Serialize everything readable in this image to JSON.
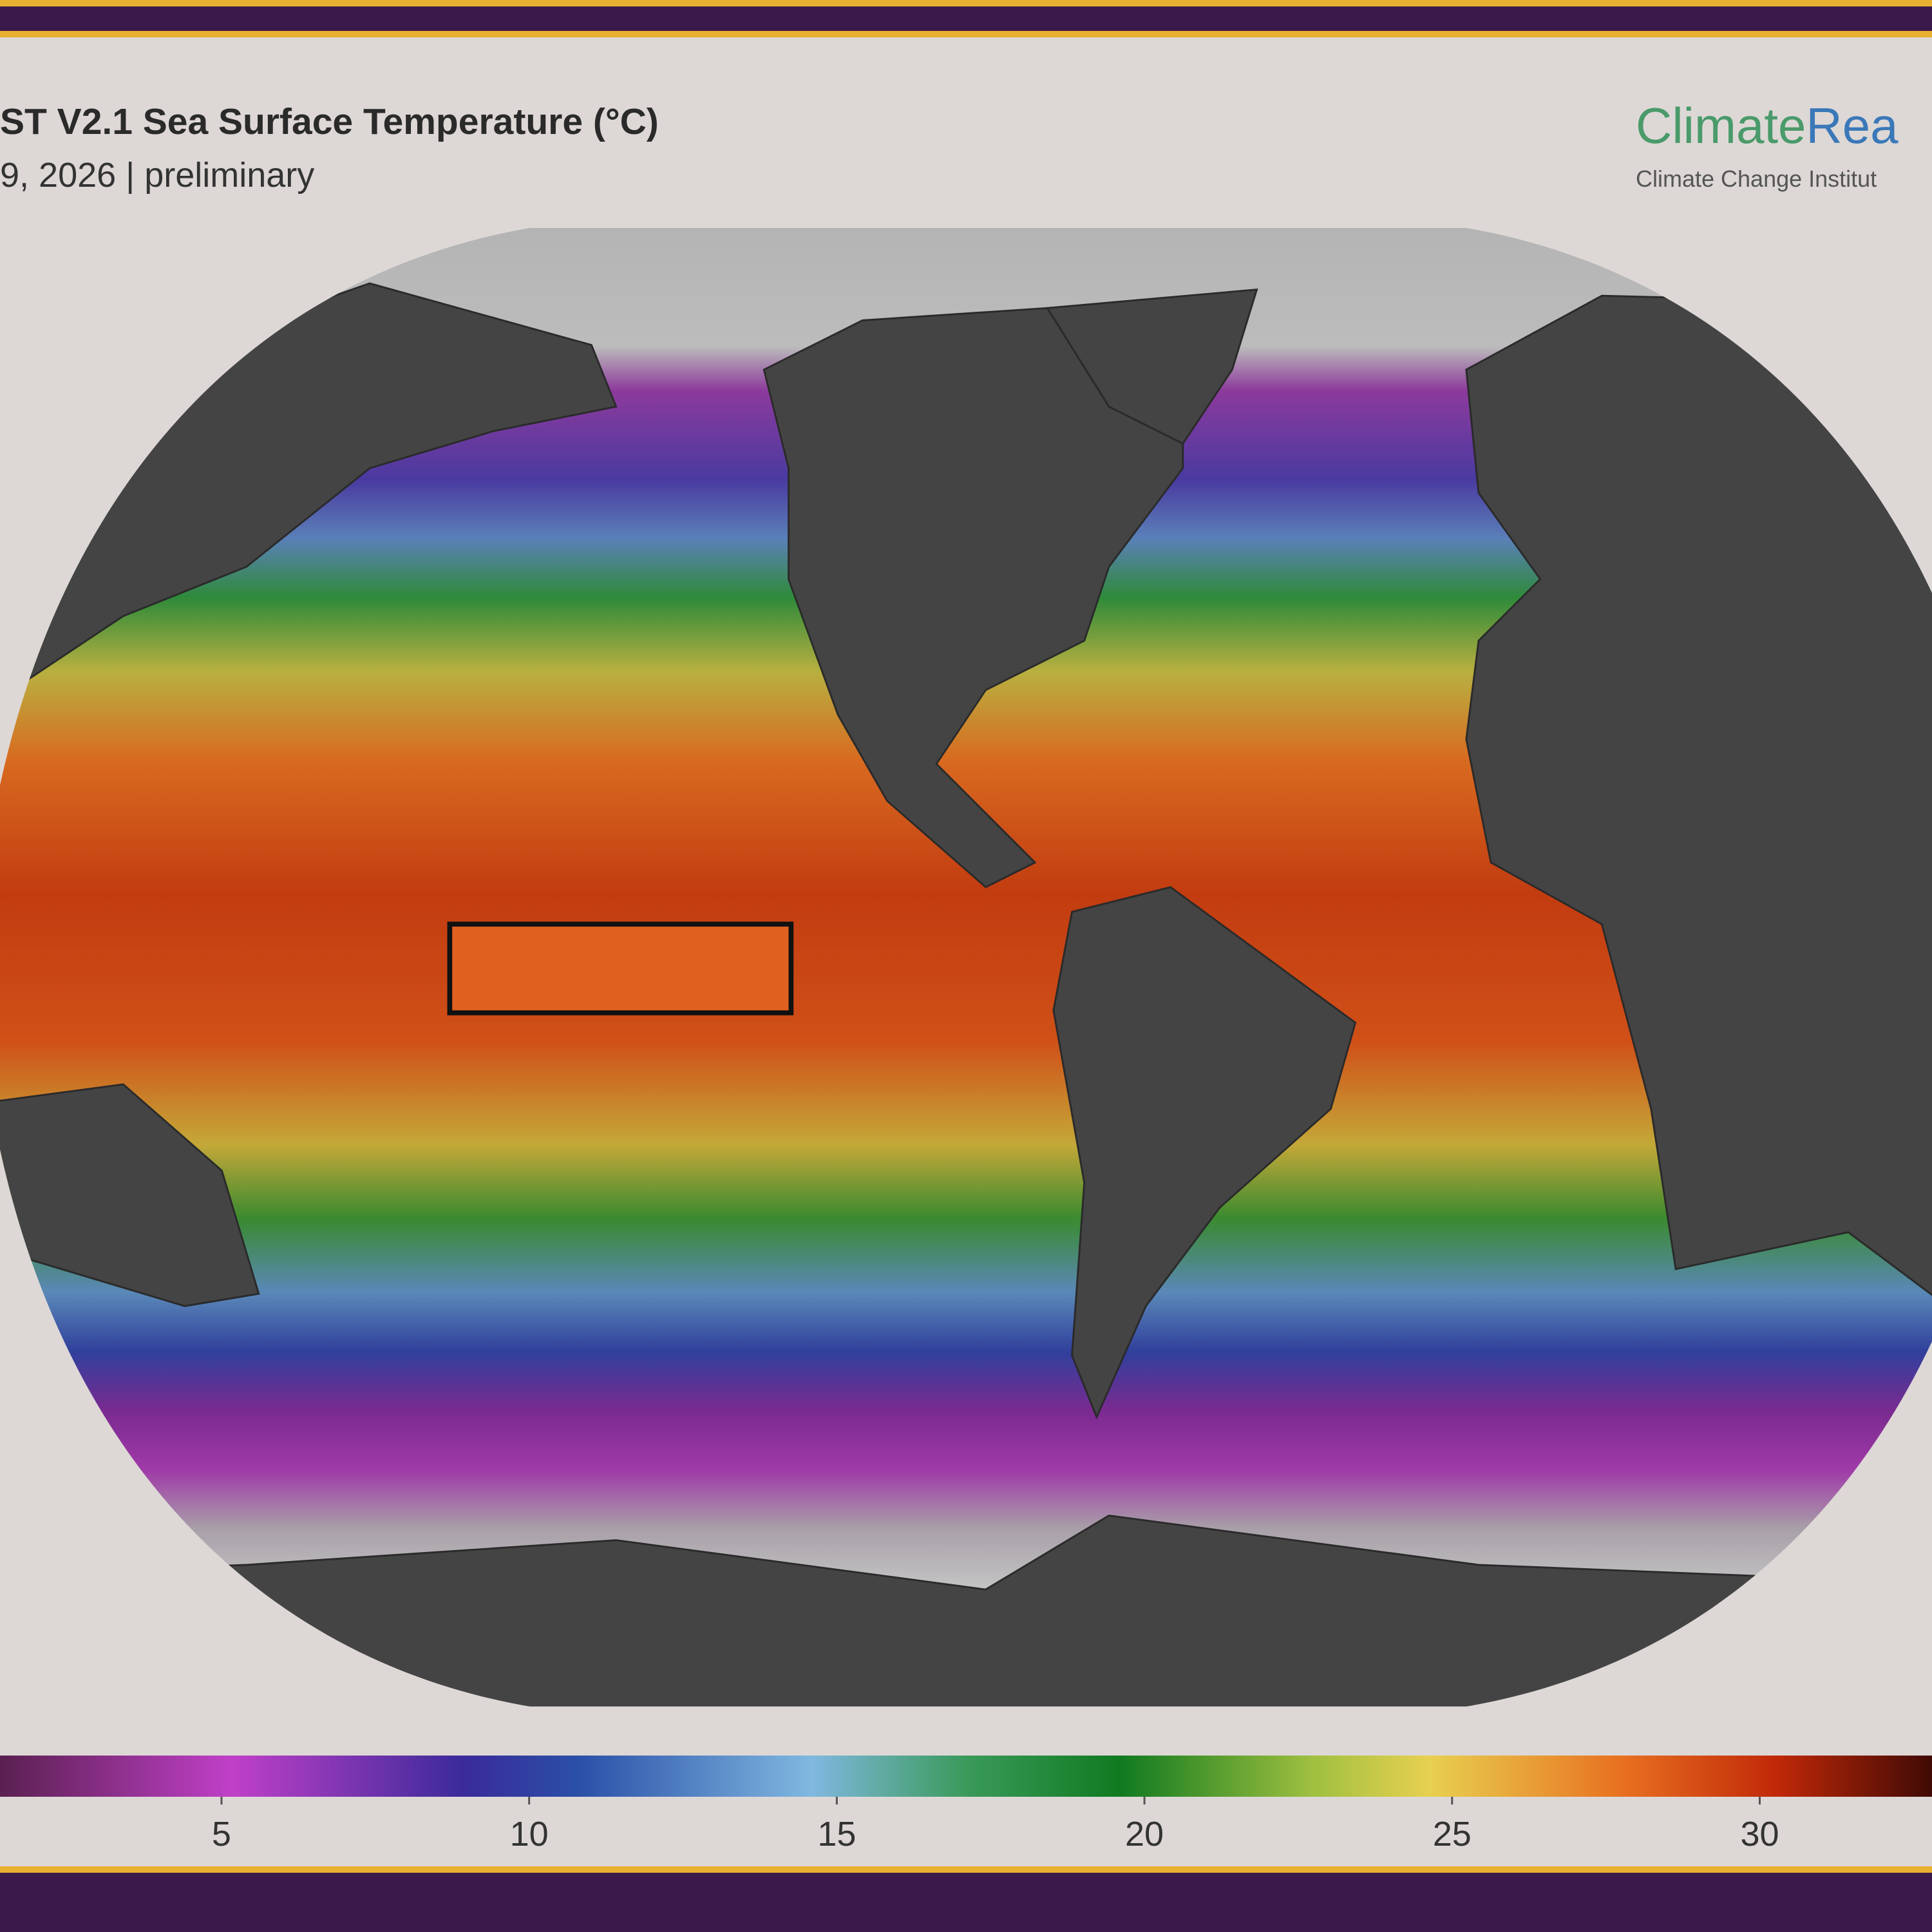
{
  "header": {
    "title": "ST V2.1 Sea Surface Temperature (°C)",
    "subtitle": "9, 2026 | preliminary"
  },
  "logo": {
    "name": [
      "Climate",
      "Rea"
    ],
    "tagline": "Climate Change Institut"
  },
  "colorbar": {
    "lim": [
      1.4,
      32.8
    ],
    "ticks": [
      5,
      10,
      15,
      20,
      25,
      30
    ]
  }
}
